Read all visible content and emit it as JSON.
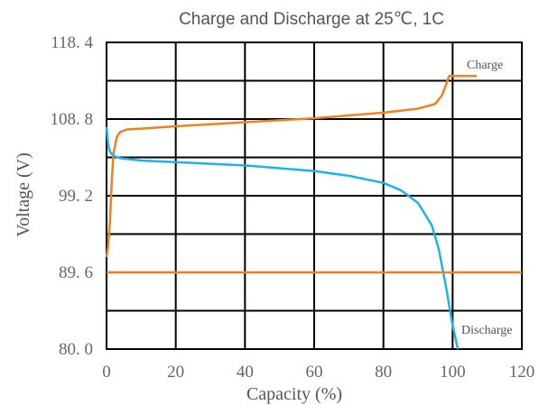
{
  "chart_data": {
    "type": "line",
    "title": "Charge and Discharge at 25℃, 1C",
    "xlabel": "Capacity (%)",
    "ylabel": "Voltage (V)",
    "xlim": [
      0,
      120
    ],
    "ylim": [
      80.0,
      118.4
    ],
    "x_ticks": [
      "0",
      "20",
      "40",
      "60",
      "80",
      "100",
      "120"
    ],
    "y_ticks": [
      "80. 0",
      "89. 6",
      "99. 2",
      "108. 8",
      "118. 4"
    ],
    "grid": true,
    "annotations": [
      "Charge",
      "Discharge"
    ],
    "series": [
      {
        "name": "Charge",
        "color": "#f08020",
        "points": [
          [
            0,
            91.5
          ],
          [
            0.5,
            93
          ],
          [
            1,
            96
          ],
          [
            1.5,
            101
          ],
          [
            2,
            104.5
          ],
          [
            3,
            106.6
          ],
          [
            4,
            107.2
          ],
          [
            6,
            107.5
          ],
          [
            10,
            107.6
          ],
          [
            20,
            107.9
          ],
          [
            40,
            108.4
          ],
          [
            60,
            108.9
          ],
          [
            80,
            109.6
          ],
          [
            90,
            110.1
          ],
          [
            95,
            110.7
          ],
          [
            97,
            111.8
          ],
          [
            98,
            113
          ],
          [
            99,
            114.2
          ],
          [
            107,
            114.2
          ]
        ]
      },
      {
        "name": "Discharge",
        "color": "#1ab4e8",
        "points": [
          [
            0,
            107.8
          ],
          [
            0.5,
            105.5
          ],
          [
            1,
            104.7
          ],
          [
            2,
            104.2
          ],
          [
            4,
            103.9
          ],
          [
            10,
            103.6
          ],
          [
            20,
            103.4
          ],
          [
            40,
            103.0
          ],
          [
            60,
            102.3
          ],
          [
            70,
            101.7
          ],
          [
            80,
            100.8
          ],
          [
            85,
            99.9
          ],
          [
            90,
            98.3
          ],
          [
            94,
            95.5
          ],
          [
            96,
            92.5
          ],
          [
            98,
            88
          ],
          [
            100,
            83
          ],
          [
            101.5,
            80.0
          ]
        ]
      },
      {
        "name": "",
        "color": "#f08020",
        "points": [
          [
            0,
            89.6
          ],
          [
            120,
            89.6
          ]
        ]
      }
    ]
  }
}
